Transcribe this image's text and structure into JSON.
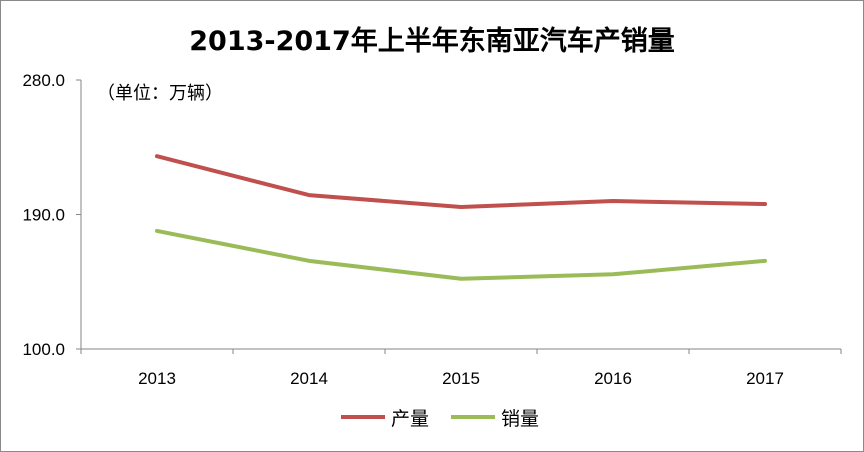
{
  "chart_data": {
    "type": "line",
    "title": "2013-2017年上半年东南亚汽车产销量",
    "unit_note": "（单位：万辆）",
    "categories": [
      "2013",
      "2014",
      "2015",
      "2016",
      "2017"
    ],
    "y_ticks": [
      "100.0",
      "190.0",
      "280.0"
    ],
    "ylim": [
      100,
      280
    ],
    "grid": false,
    "legend_position": "bottom",
    "series": [
      {
        "name": "产量",
        "color": "#c0504d",
        "values": [
          229,
          203,
          195,
          199,
          197
        ]
      },
      {
        "name": "销量",
        "color": "#9bbb59",
        "values": [
          179,
          159,
          147,
          150,
          159
        ]
      }
    ]
  }
}
